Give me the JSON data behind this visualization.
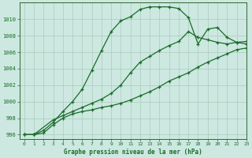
{
  "title": "Graphe pression niveau de la mer (hPa)",
  "background_color": "#cce8e0",
  "grid_color": "#aaccbb",
  "line_color": "#1a6b2a",
  "xlim": [
    -0.5,
    23
  ],
  "ylim": [
    995.5,
    1012.0
  ],
  "yticks": [
    996,
    998,
    1000,
    1002,
    1004,
    1006,
    1008,
    1010
  ],
  "xticks": [
    0,
    1,
    2,
    3,
    4,
    5,
    6,
    7,
    8,
    9,
    10,
    11,
    12,
    13,
    14,
    15,
    16,
    17,
    18,
    19,
    20,
    21,
    22,
    23
  ],
  "line1_x": [
    0,
    1,
    2,
    3,
    4,
    5,
    6,
    7,
    8,
    9,
    10,
    11,
    12,
    13,
    14,
    15,
    16,
    17,
    18,
    19,
    20,
    21,
    22,
    23
  ],
  "line1_y": [
    996,
    996,
    996.5,
    997.5,
    998.8,
    1000.0,
    1001.5,
    1003.8,
    1006.2,
    1008.5,
    1009.8,
    1010.3,
    1011.2,
    1011.5,
    1011.5,
    1011.5,
    1011.3,
    1010.2,
    1007.0,
    1008.8,
    1009.0,
    1007.8,
    1007.2,
    1007.0
  ],
  "line2_x": [
    0,
    1,
    3,
    4,
    5,
    6,
    7,
    8,
    9,
    10,
    11,
    12,
    13,
    14,
    15,
    16,
    17,
    18,
    19,
    20,
    21,
    22,
    23
  ],
  "line2_y": [
    996,
    996,
    997.8,
    998.3,
    998.8,
    999.3,
    999.8,
    1000.3,
    1001.0,
    1002.0,
    1003.5,
    1004.8,
    1005.5,
    1006.2,
    1006.8,
    1007.3,
    1008.5,
    1007.8,
    1007.5,
    1007.2,
    1007.0,
    1007.2,
    1007.3
  ],
  "line3_x": [
    0,
    1,
    2,
    3,
    4,
    5,
    6,
    7,
    8,
    9,
    10,
    11,
    12,
    13,
    14,
    15,
    16,
    17,
    18,
    19,
    20,
    21,
    22,
    23
  ],
  "line3_y": [
    996,
    996,
    996.2,
    997.2,
    998.0,
    998.5,
    998.8,
    999.0,
    999.3,
    999.5,
    999.8,
    1000.2,
    1000.7,
    1001.2,
    1001.8,
    1002.5,
    1003.0,
    1003.5,
    1004.2,
    1004.8,
    1005.3,
    1005.8,
    1006.3,
    1006.5
  ]
}
